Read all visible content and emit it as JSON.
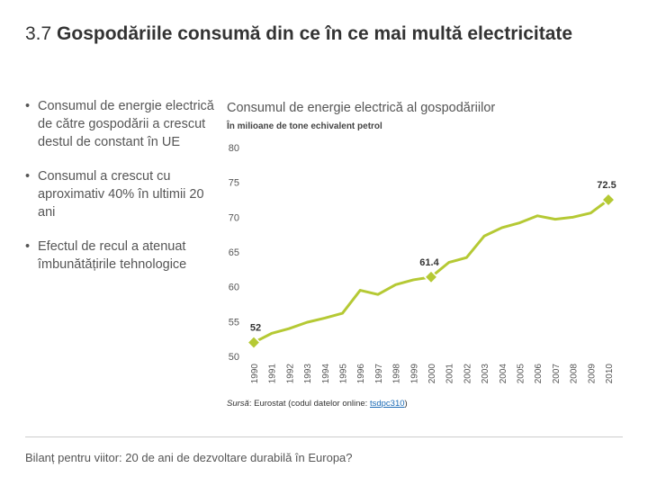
{
  "slide": {
    "number": "3.7",
    "title": "Gospodăriile consumă din ce în ce mai multă electricitate",
    "bullets": [
      "Consumul de energie electrică de către gospodării a crescut destul de constant în UE",
      "Consumul a crescut cu aproximativ 40% în ultimii 20 ani",
      "Efectul de recul a atenuat îmbunătățirile tehnologice"
    ],
    "source": {
      "label": "Sursă",
      "text": ": Eurostat (codul datelor online: ",
      "code": "tsdpc310",
      "close": ")"
    },
    "footer": "Bilanț pentru viitor: 20 de ani de dezvoltare durabilă în Europa?"
  },
  "chart_data": {
    "type": "line",
    "title": "Consumul de energie electrică al gospodăriilor",
    "subtitle": "În milioane de tone echivalent petrol",
    "categories": [
      "1990",
      "1991",
      "1992",
      "1993",
      "1994",
      "1995",
      "1996",
      "1997",
      "1998",
      "1999",
      "2000",
      "2001",
      "2002",
      "2003",
      "2004",
      "2005",
      "2006",
      "2007",
      "2008",
      "2009",
      "2010"
    ],
    "series": [
      {
        "name": "Consumul de energie electrică",
        "color": "#b5c934",
        "values": [
          52,
          53.3,
          54,
          54.9,
          55.5,
          56.2,
          59.5,
          58.9,
          60.3,
          61.0,
          61.4,
          63.5,
          64.2,
          67.3,
          68.5,
          69.2,
          70.2,
          69.7,
          70.0,
          70.6,
          72.5
        ],
        "value_labels": [
          "52",
          null,
          null,
          null,
          null,
          null,
          null,
          null,
          null,
          null,
          "61.4",
          null,
          null,
          null,
          null,
          null,
          null,
          null,
          null,
          null,
          "72.5"
        ]
      }
    ],
    "ylim": [
      50,
      80
    ],
    "yticks": [
      50,
      55,
      60,
      65,
      70,
      75,
      80
    ],
    "grid": false
  }
}
